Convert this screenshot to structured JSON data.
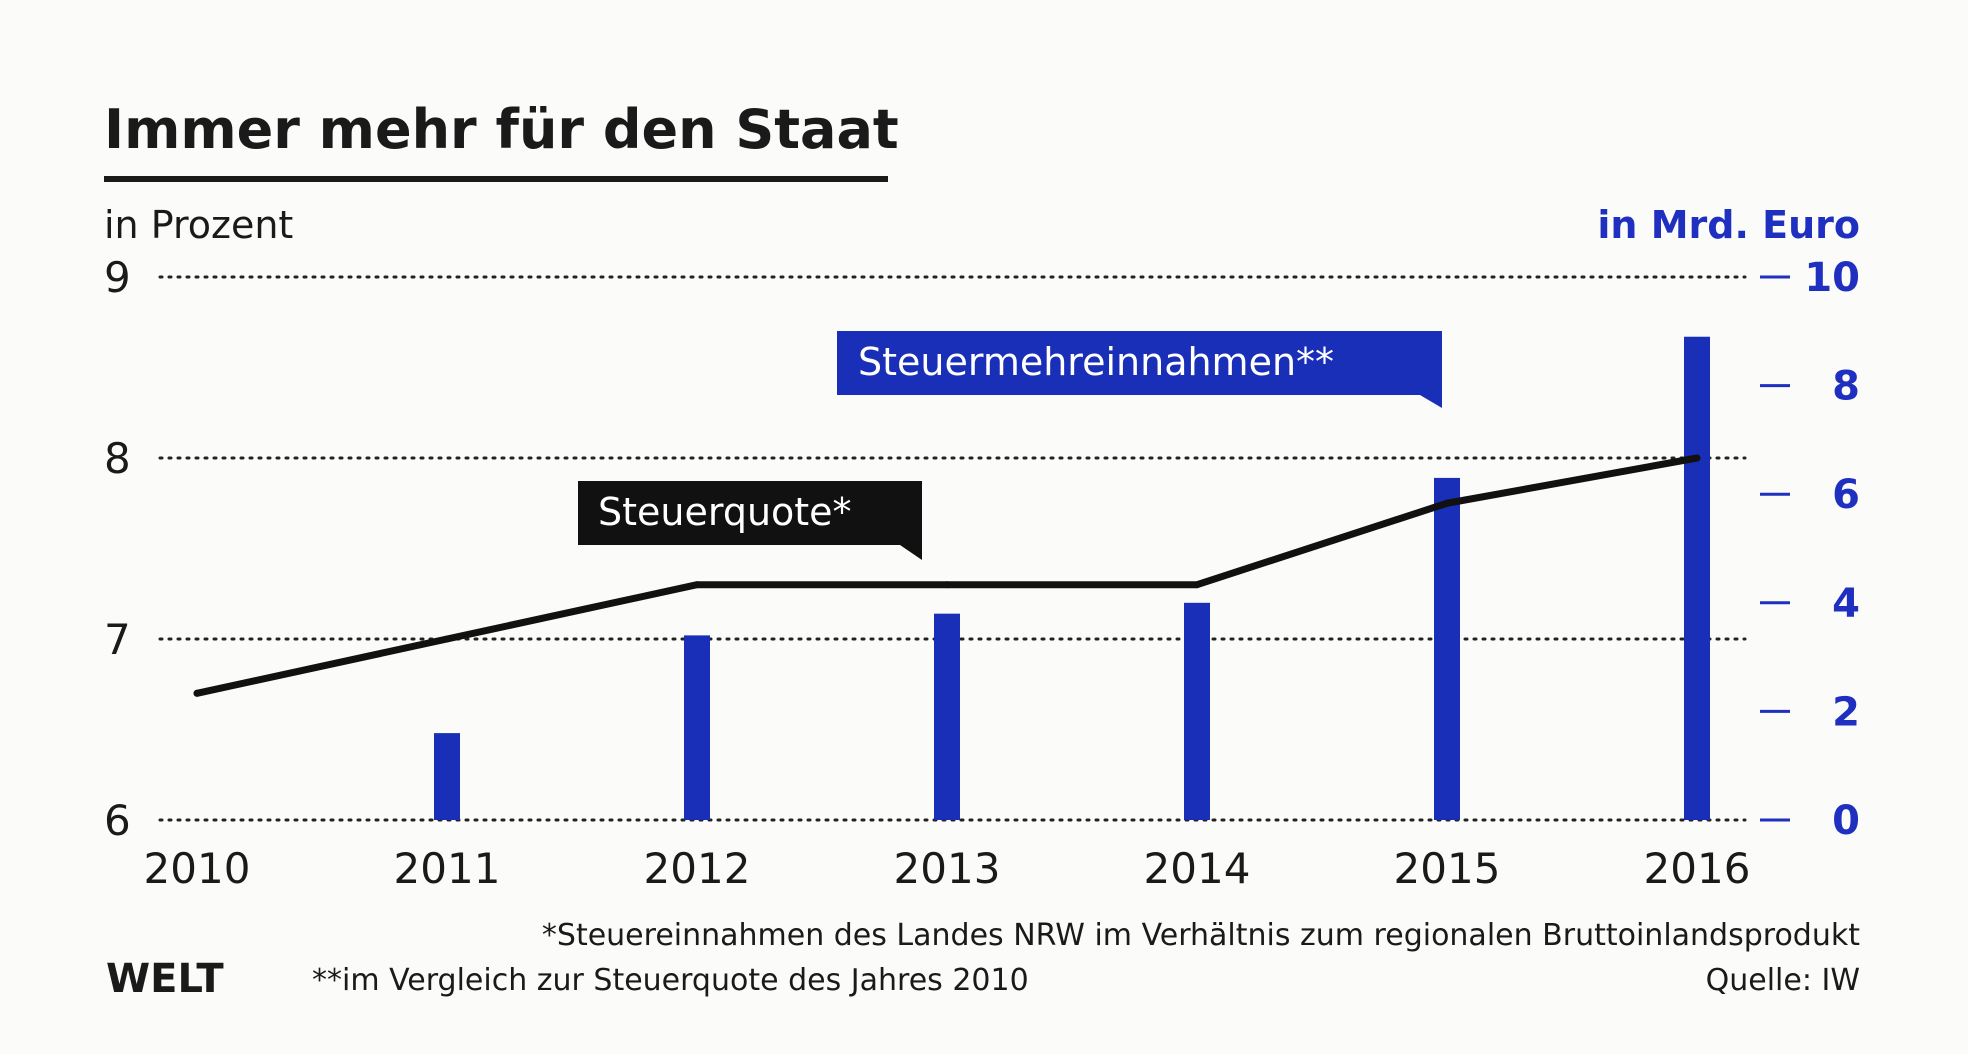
{
  "header": {
    "title": "Immer mehr für den Staat",
    "left_axis_unit": "in Prozent",
    "right_axis_unit": "in Mrd. Euro"
  },
  "labels": {
    "bar_series": "Steuermehreinnahmen**",
    "line_series": "Steuerquote*"
  },
  "footnotes": {
    "note1": "*Steuereinnahmen des Landes NRW im Verhältnis zum regionalen Bruttoinlandsprodukt",
    "note2": "**im Vergleich zur Steuerquote des Jahres 2010",
    "source": "Quelle: IW"
  },
  "brand": {
    "logo": "WELT"
  },
  "colors": {
    "bar": "#1a2fb8",
    "line": "#111111",
    "right_axis": "#1f2fbf",
    "text": "#1a1a1a"
  },
  "chart_data": {
    "type": "bar+line",
    "categories": [
      "2010",
      "2011",
      "2012",
      "2013",
      "2014",
      "2015",
      "2016"
    ],
    "series": [
      {
        "name": "Steuermehreinnahmen**",
        "type": "bar",
        "axis": "right",
        "values": [
          0,
          1.6,
          3.4,
          3.8,
          4.0,
          6.3,
          8.9
        ]
      },
      {
        "name": "Steuerquote*",
        "type": "line",
        "axis": "left",
        "values": [
          6.7,
          7.0,
          7.3,
          7.3,
          7.3,
          7.75,
          8.0
        ]
      }
    ],
    "y_left": {
      "label": "in Prozent",
      "ticks": [
        6,
        7,
        8,
        9
      ],
      "range": [
        6,
        9
      ]
    },
    "y_right": {
      "label": "in Mrd. Euro",
      "ticks": [
        0,
        2,
        4,
        6,
        8,
        10
      ],
      "range": [
        0,
        10
      ]
    },
    "grid": "dotted horizontal at left-axis ticks"
  }
}
